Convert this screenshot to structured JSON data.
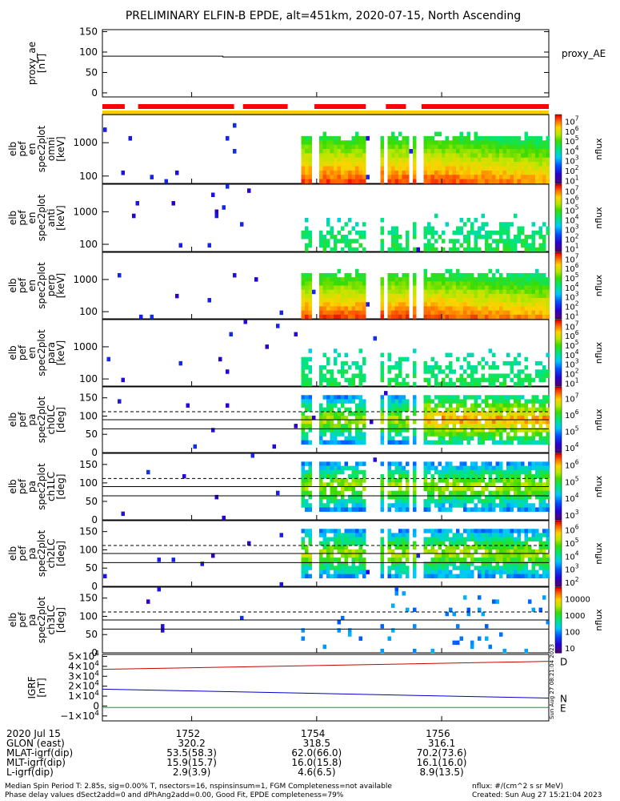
{
  "chart_data": {
    "type": "heatmap",
    "title": "PRELIMINARY ELFIN-B EPDE, alt=451km, 2020-07-15, North Ascending",
    "date_label": "2020 Jul 15",
    "x_ticks": [
      "1752",
      "1754",
      "1756"
    ],
    "ephemeris": [
      {
        "label": "GLON (east)",
        "values": [
          "320.2",
          "318.5",
          "316.1"
        ]
      },
      {
        "label": "MLAT-igrf(dip)",
        "values": [
          "53.5(58.3)",
          "62.0(66.0)",
          "70.2(73.6)"
        ]
      },
      {
        "label": "MLT-igrf(dip)",
        "values": [
          "15.9(15.7)",
          "16.0(15.8)",
          "16.1(16.0)"
        ]
      },
      {
        "label": "L-igrf(dip)",
        "values": [
          "2.9(3.9)",
          "4.6(6.5)",
          "8.9(13.5)"
        ]
      }
    ],
    "panels": [
      {
        "id": "proxy_ae",
        "ylabel": [
          "proxy_ae",
          "[nT]"
        ],
        "yticks": [
          "150",
          "100",
          "50",
          "0"
        ],
        "ylim": [
          -10,
          155
        ],
        "line_label": "proxy_AE",
        "line_value": 90
      },
      {
        "id": "pef-en-omni",
        "ylabel": [
          "elb",
          "pef",
          "en",
          "spec2plot",
          "omni",
          "[keV]"
        ],
        "yticks": [
          "1000",
          "100"
        ],
        "ylim_log": [
          60,
          7000
        ],
        "zlabel": "nflux",
        "zticks": [
          "10^1",
          "10^2",
          "10^3",
          "10^4",
          "10^5",
          "10^6",
          "10^7"
        ],
        "zlim_log": [
          1,
          7
        ]
      },
      {
        "id": "pef-en-anti",
        "ylabel": [
          "elb",
          "pef",
          "en",
          "spec2plot",
          "anti",
          "[keV]"
        ],
        "yticks": [
          "1000",
          "100"
        ],
        "ylim_log": [
          60,
          7000
        ],
        "zlabel": "nflux",
        "zticks": [
          "10^1",
          "10^2",
          "10^3",
          "10^4",
          "10^5",
          "10^6",
          "10^7"
        ],
        "zlim_log": [
          1,
          7
        ]
      },
      {
        "id": "pef-en-perp",
        "ylabel": [
          "elb",
          "pef",
          "en",
          "spec2plot",
          "perp",
          "[keV]"
        ],
        "yticks": [
          "1000",
          "100"
        ],
        "ylim_log": [
          60,
          7000
        ],
        "zlabel": "nflux",
        "zticks": [
          "10^1",
          "10^2",
          "10^3",
          "10^4",
          "10^5",
          "10^6",
          "10^7"
        ],
        "zlim_log": [
          1,
          7
        ]
      },
      {
        "id": "pef-en-para",
        "ylabel": [
          "elb",
          "pef",
          "en",
          "spec2plot",
          "para",
          "[keV]"
        ],
        "yticks": [
          "1000",
          "100"
        ],
        "ylim_log": [
          60,
          7000
        ],
        "zlabel": "nflux",
        "zticks": [
          "10^1",
          "10^2",
          "10^3",
          "10^4",
          "10^5",
          "10^6",
          "10^7"
        ],
        "zlim_log": [
          1,
          7
        ]
      },
      {
        "id": "pef-pa-ch0LC",
        "ylabel": [
          "elb",
          "pef",
          "pa",
          "spec2plot",
          "ch0LC",
          "[deg]"
        ],
        "yticks": [
          "150",
          "100",
          "50",
          "0"
        ],
        "ylim": [
          0,
          180
        ],
        "lc_lines": [
          65,
          112
        ],
        "zlabel": "nflux",
        "zticks": [
          "10^4",
          "10^5",
          "10^6",
          "10^7"
        ],
        "zlim_log": [
          3.7,
          7
        ]
      },
      {
        "id": "pef-pa-ch1LC",
        "ylabel": [
          "elb",
          "pef",
          "pa",
          "spec2plot",
          "ch1LC",
          "[deg]"
        ],
        "yticks": [
          "150",
          "100",
          "50",
          "0"
        ],
        "ylim": [
          0,
          180
        ],
        "lc_lines": [
          65,
          112
        ],
        "zlabel": "nflux",
        "zticks": [
          "10^3",
          "10^4",
          "10^5",
          "10^6"
        ],
        "zlim_log": [
          2.5,
          6.3
        ]
      },
      {
        "id": "pef-pa-ch2LC",
        "ylabel": [
          "elb",
          "pef",
          "pa",
          "spec2plot",
          "ch2LC",
          "[deg]"
        ],
        "yticks": [
          "150",
          "100",
          "50",
          "0"
        ],
        "ylim": [
          0,
          180
        ],
        "lc_lines": [
          65,
          112
        ],
        "zlabel": "nflux",
        "zticks": [
          "10^2",
          "10^3",
          "10^4",
          "10^5",
          "10^6"
        ],
        "zlim_log": [
          2,
          6
        ]
      },
      {
        "id": "pef-pa-ch3LC",
        "ylabel": [
          "elb",
          "pef",
          "pa",
          "spec2plot",
          "ch3LC",
          "[deg]"
        ],
        "yticks": [
          "150",
          "100",
          "50",
          "0"
        ],
        "ylim": [
          0,
          180
        ],
        "lc_lines": [
          65,
          112
        ],
        "zlabel": "nflux",
        "zticks": [
          "10",
          "100",
          "1000",
          "10000"
        ],
        "zlim_log": [
          1,
          4
        ]
      },
      {
        "id": "igrf",
        "ylabel": [
          "IGRF",
          "[nT]"
        ],
        "yticks": [
          "5×10^4",
          "4×10^4",
          "3×10^4",
          "2×10^4",
          "1×10^4",
          "0",
          "−1×10^4"
        ],
        "ylim": [
          -15000,
          52000
        ],
        "series": [
          {
            "name": "D",
            "start": 37000,
            "end": 45000,
            "color": "#cc0000"
          },
          {
            "name": "N",
            "start": 17000,
            "end": 8000,
            "color": "#0000cc"
          },
          {
            "name": "E",
            "start": -1500,
            "end": -1500,
            "color": "#00aa00"
          }
        ],
        "stamp": "Sun Aug 27 08:21:04 2023"
      }
    ],
    "science_zone_segments": [
      [
        0.0,
        0.05
      ],
      [
        0.08,
        0.295
      ],
      [
        0.315,
        0.415
      ],
      [
        0.475,
        0.59
      ],
      [
        0.635,
        0.68
      ],
      [
        0.715,
        1.0
      ]
    ],
    "data_segments": [
      [
        0.44,
        0.465
      ],
      [
        0.48,
        0.59
      ],
      [
        0.615,
        0.625
      ],
      [
        0.635,
        0.68
      ],
      [
        0.695,
        0.7
      ],
      [
        0.715,
        1.0
      ]
    ]
  },
  "footer": {
    "line1": "Median Spin Period T: 2.85s, sig=0.00% T, nsectors=16, nspinsinsum=1, FGM Completeness=not available",
    "line2": "Phase delay values dSect2add=0 and dPhAng2add=0.00, Good Fit, EPDE completeness=79%",
    "units": "nflux: #/(cm^2 s sr MeV)",
    "created": "Created: Sun Aug 27 15:21:04 2023"
  },
  "colors": {
    "science_zone": "#ff0000",
    "orbit_bar": "#ffcc00"
  }
}
